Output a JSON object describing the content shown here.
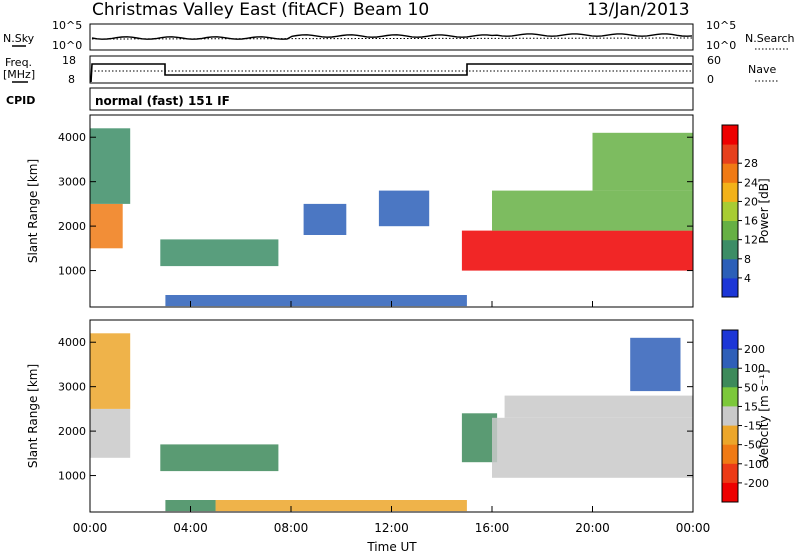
{
  "header": {
    "title": "Christmas Valley East (fitACF)",
    "beam": "Beam 10",
    "date": "13/Jan/2013"
  },
  "noise_panel": {
    "left_label": "N.Sky",
    "left_ticks": [
      "10^5",
      "10^0"
    ],
    "right_ticks": [
      "10^5",
      "10^0"
    ],
    "right_label": "N.Search"
  },
  "freq_panel": {
    "left_label_line1": "Freq.",
    "left_label_line2": "[MHz]",
    "left_ticks": [
      18,
      8
    ],
    "right_ticks": [
      60,
      0
    ],
    "right_label": "Nave"
  },
  "cpid": {
    "label": "CPID",
    "value": "normal (fast) 151 IF"
  },
  "colors": {
    "power": [
      "#1c36d6",
      "#2b5fb8",
      "#3c8d66",
      "#66b044",
      "#a8cc33",
      "#f2b21a",
      "#f07a14",
      "#e6401c",
      "#ee0000"
    ],
    "velocity": [
      "#1c36d6",
      "#2f5fb8",
      "#3d8a5a",
      "#7cc83a",
      "#c9c9c9",
      "#eca62a",
      "#f07a14",
      "#ec3a16",
      "#ee0000"
    ]
  },
  "chart_data": [
    {
      "type": "heatmap",
      "name": "power",
      "ylabel": "Slant Range [km]",
      "ylim": [
        180,
        4500
      ],
      "yticks": [
        1000,
        2000,
        3000,
        4000
      ],
      "xlim": [
        0,
        24
      ],
      "colorbar": {
        "label": "Power [dB]",
        "ticks": [
          4,
          8,
          12,
          16,
          20,
          24,
          28
        ],
        "range": [
          0,
          32
        ]
      },
      "regions": [
        {
          "t0": 0.0,
          "t1": 1.3,
          "r0": 1500,
          "r1": 2500,
          "v": 22
        },
        {
          "t0": 0.0,
          "t1": 1.6,
          "r0": 2500,
          "r1": 4200,
          "v": 10
        },
        {
          "t0": 2.8,
          "t1": 7.5,
          "r0": 1100,
          "r1": 1700,
          "v": 9
        },
        {
          "t0": 3.0,
          "t1": 15.0,
          "r0": 200,
          "r1": 450,
          "v": 7
        },
        {
          "t0": 8.5,
          "t1": 10.2,
          "r0": 1800,
          "r1": 2500,
          "v": 5
        },
        {
          "t0": 11.5,
          "t1": 13.5,
          "r0": 2000,
          "r1": 2800,
          "v": 6
        },
        {
          "t0": 14.8,
          "t1": 24.0,
          "r0": 1000,
          "r1": 1900,
          "v": 29
        },
        {
          "t0": 16.0,
          "t1": 24.0,
          "r0": 1900,
          "r1": 2800,
          "v": 14
        },
        {
          "t0": 20.0,
          "t1": 24.0,
          "r0": 2800,
          "r1": 4100,
          "v": 12
        }
      ]
    },
    {
      "type": "heatmap",
      "name": "velocity",
      "ylabel": "Slant Range [km]",
      "xlabel": "Time UT",
      "ylim": [
        180,
        4500
      ],
      "yticks": [
        1000,
        2000,
        3000,
        4000
      ],
      "xlim": [
        0,
        24
      ],
      "xticks": [
        "00:00",
        "04:00",
        "08:00",
        "12:00",
        "16:00",
        "20:00",
        "00:00"
      ],
      "colorbar": {
        "label": "Velocity [m s⁻¹]",
        "ticks": [
          200,
          100,
          50,
          15,
          -15,
          -50,
          -100,
          -200
        ],
        "range": [
          -250,
          250
        ]
      },
      "regions": [
        {
          "t0": 0.0,
          "t1": 1.6,
          "r0": 1400,
          "r1": 2500,
          "v": 0
        },
        {
          "t0": 0.0,
          "t1": 1.6,
          "r0": 2500,
          "r1": 4200,
          "v": -30
        },
        {
          "t0": 2.8,
          "t1": 7.5,
          "r0": 1100,
          "r1": 1700,
          "v": 60
        },
        {
          "t0": 3.0,
          "t1": 5.0,
          "r0": 200,
          "r1": 450,
          "v": 60
        },
        {
          "t0": 5.0,
          "t1": 15.0,
          "r0": 200,
          "r1": 450,
          "v": -40
        },
        {
          "t0": 14.8,
          "t1": 16.2,
          "r0": 1300,
          "r1": 2400,
          "v": 60
        },
        {
          "t0": 16.0,
          "t1": 24.0,
          "r0": 950,
          "r1": 2300,
          "v": 0
        },
        {
          "t0": 16.5,
          "t1": 24.0,
          "r0": 2300,
          "r1": 2800,
          "v": 0
        },
        {
          "t0": 21.5,
          "t1": 23.5,
          "r0": 2900,
          "r1": 4100,
          "v": 180
        }
      ]
    }
  ]
}
